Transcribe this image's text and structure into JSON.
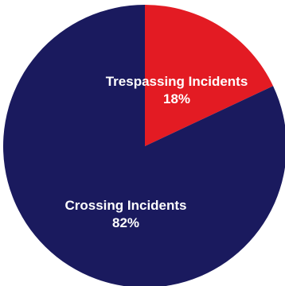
{
  "chart_data": {
    "type": "pie",
    "title": "",
    "slices": [
      {
        "label": "Trespassing Incidents",
        "value": 18,
        "value_label": "18%",
        "color": "#e31b23"
      },
      {
        "label": "Crossing Incidents",
        "value": 82,
        "value_label": "82%",
        "color": "#1a1a5e"
      }
    ],
    "start": "12 o'clock",
    "direction": "clockwise",
    "legend": "none"
  }
}
